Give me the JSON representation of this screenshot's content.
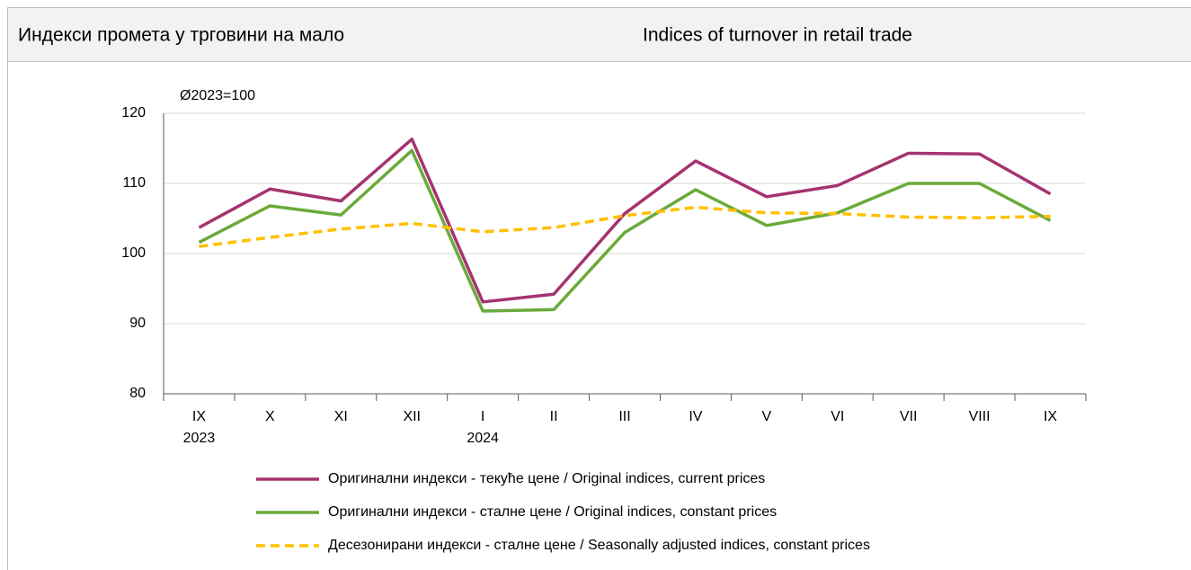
{
  "header": {
    "title_sr": "Индекси промета у трговини на мало",
    "title_en": "Indices of turnover in retail trade"
  },
  "chart_data": {
    "type": "line",
    "unit_label": "Ø2023=100",
    "categories": [
      "IX\n2023",
      "X",
      "XI",
      "XII",
      "I\n2024",
      "II",
      "III",
      "IV",
      "V",
      "VI",
      "VII",
      "VIII",
      "IX"
    ],
    "series": [
      {
        "name": "Оригинални индекси - текуће цене / Original indices, current prices",
        "color": "#a5336f",
        "dashed": false,
        "values": [
          103.7,
          109.2,
          107.5,
          116.3,
          93.1,
          94.2,
          105.7,
          113.2,
          108.1,
          109.7,
          114.3,
          114.2,
          108.5
        ]
      },
      {
        "name": "Оригинални индекси - сталне цене / Original indices, constant prices",
        "color": "#6aaa3a",
        "dashed": false,
        "values": [
          101.6,
          106.8,
          105.5,
          114.7,
          91.8,
          92.0,
          103.0,
          109.1,
          104.0,
          105.8,
          110.0,
          110.0,
          104.7
        ]
      },
      {
        "name": "Десезонирани индекси - сталне цене / Seasonally adjusted indices, constant prices",
        "color": "#ffc000",
        "dashed": true,
        "values": [
          101.0,
          102.3,
          103.5,
          104.3,
          103.1,
          103.7,
          105.4,
          106.6,
          105.8,
          105.7,
          105.2,
          105.1,
          105.3
        ]
      }
    ],
    "ylim": [
      80,
      120
    ],
    "yticks": [
      80,
      90,
      100,
      110,
      120
    ],
    "grid": true
  }
}
